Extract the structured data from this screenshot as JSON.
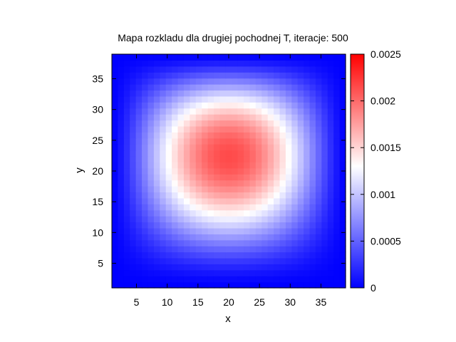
{
  "chart_data": {
    "type": "heatmap",
    "title": "Mapa rozkladu dla drugiej pochodnej T, iteracje: 500",
    "xlabel": "x",
    "ylabel": "y",
    "xlim": [
      1,
      39
    ],
    "ylim": [
      1,
      39
    ],
    "grid_size": [
      39,
      39
    ],
    "x_ticks": [
      5,
      10,
      15,
      20,
      25,
      30,
      35
    ],
    "y_ticks": [
      5,
      10,
      15,
      20,
      25,
      30,
      35
    ],
    "x_tick_labels": [
      "5",
      "10",
      "15",
      "20",
      "25",
      "30",
      "35"
    ],
    "y_tick_labels": [
      "5",
      "10",
      "15",
      "20",
      "25",
      "30",
      "35"
    ],
    "colorbar": {
      "range": [
        0,
        0.0025
      ],
      "ticks": [
        0,
        0.0005,
        0.001,
        0.0015,
        0.002,
        0.0025
      ],
      "tick_labels": [
        "0",
        "0.0005",
        "0.001",
        "0.0015",
        "0.002",
        "0.0025"
      ],
      "palette": [
        "#0000ff",
        "#ffffff",
        "#ff0000"
      ],
      "palette_stops": [
        0,
        0.0013,
        0.0025
      ]
    },
    "peak": {
      "x": 20,
      "y": 22.5,
      "value": 0.00215
    },
    "grid": false,
    "legend": "colorbar-right"
  }
}
